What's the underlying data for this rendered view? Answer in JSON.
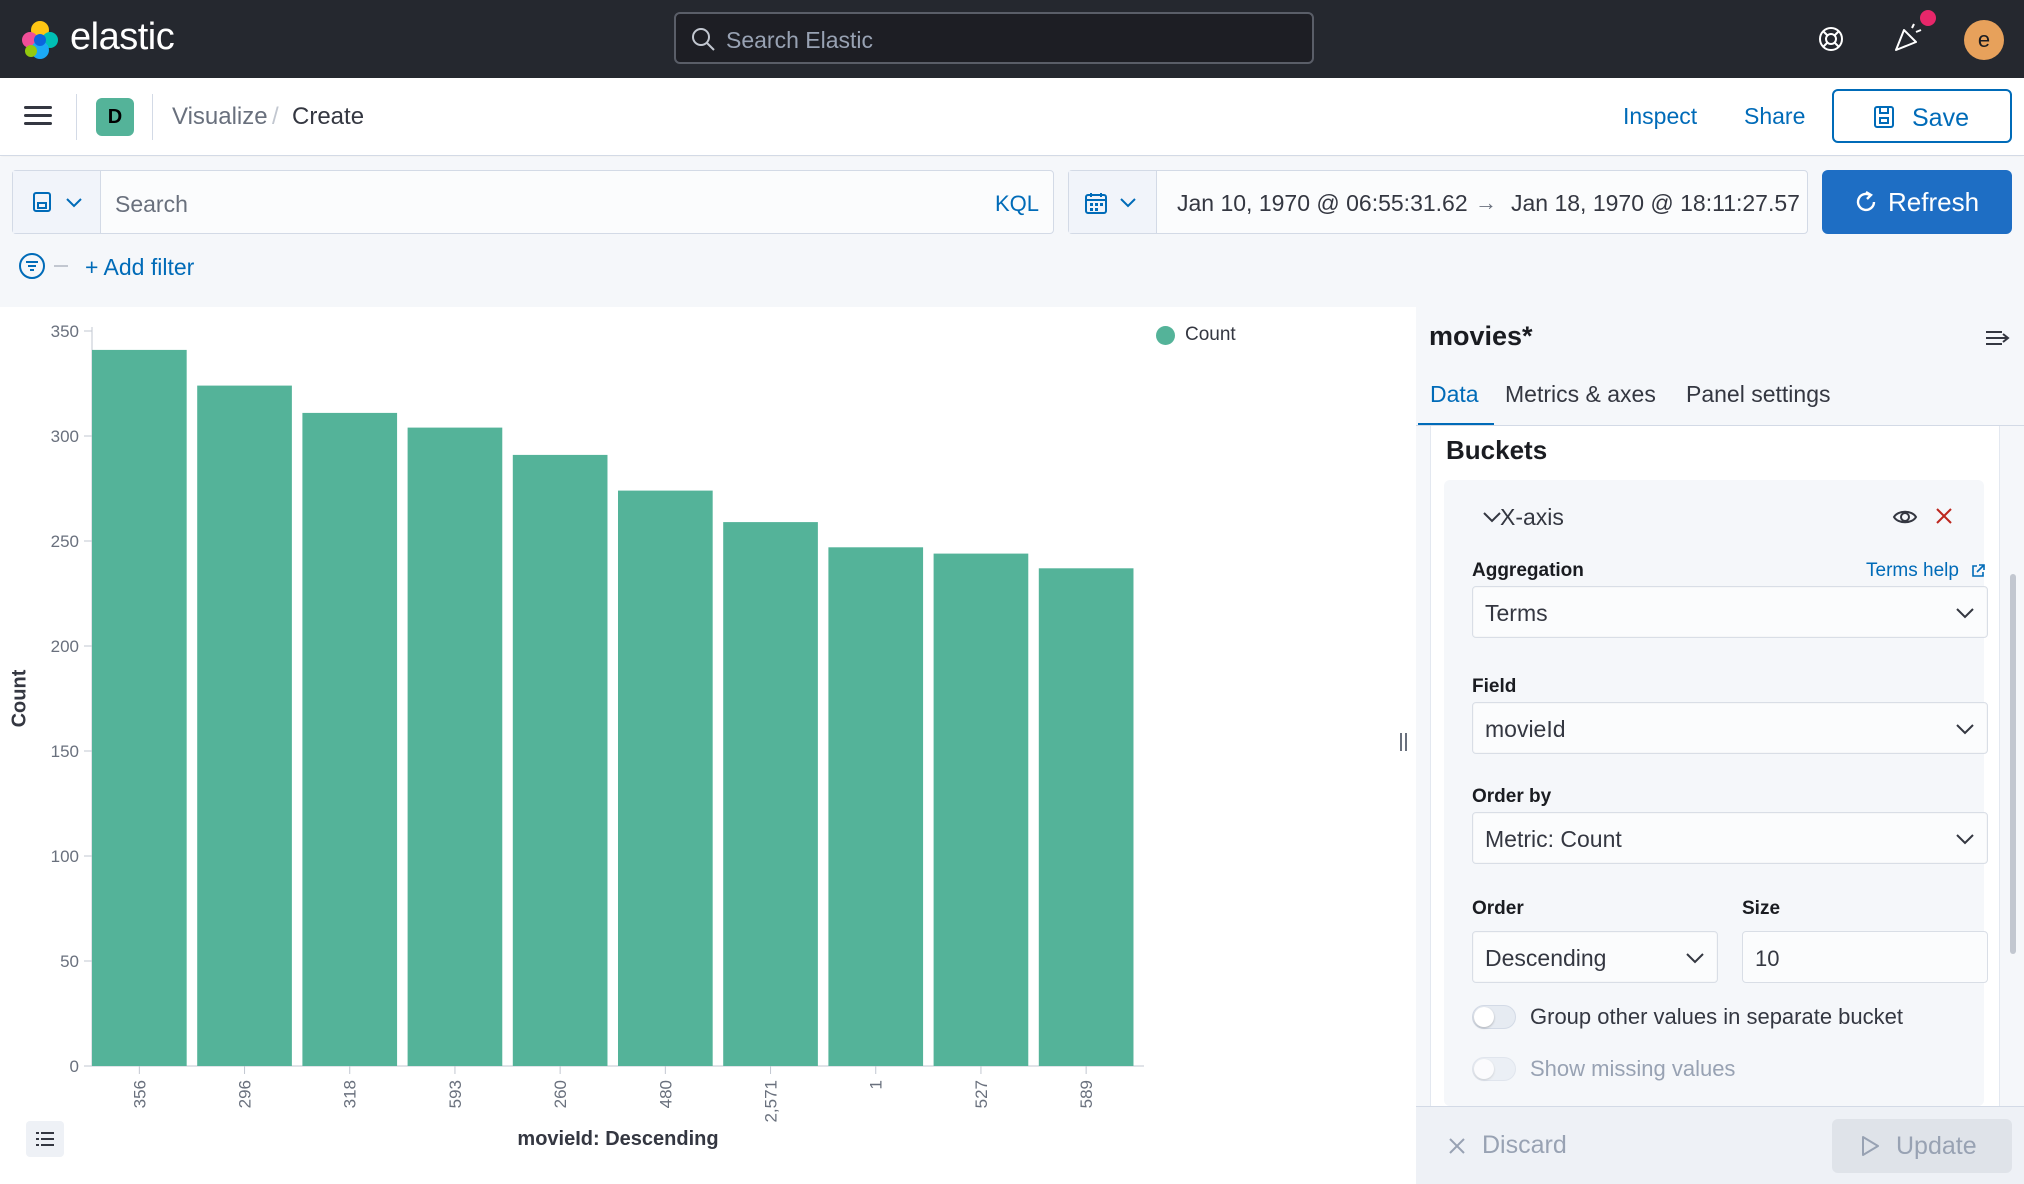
{
  "header": {
    "logo_text": "elastic",
    "search_placeholder": "Search Elastic",
    "user_initial": "e"
  },
  "appbar": {
    "space_initial": "D",
    "breadcrumbs": [
      "Visualize",
      "Create"
    ],
    "separator": "/",
    "inspect_label": "Inspect",
    "share_label": "Share",
    "save_label": "Save"
  },
  "query": {
    "placeholder": "Search",
    "language": "KQL",
    "date_start": "Jan 10, 1970 @ 06:55:31.62",
    "date_arrow": "→",
    "date_end": "Jan 18, 1970 @ 18:11:27.57",
    "refresh_label": "Refresh",
    "add_filter_label": "+ Add filter"
  },
  "chart_data": {
    "type": "bar",
    "categories": [
      "356",
      "296",
      "318",
      "593",
      "260",
      "480",
      "2,571",
      "1",
      "527",
      "589"
    ],
    "series": [
      {
        "name": "Count",
        "values": [
          341,
          324,
          311,
          304,
          291,
          274,
          259,
          247,
          244,
          237
        ]
      }
    ],
    "xlabel": "movieId: Descending",
    "ylabel": "Count",
    "ylim": [
      0,
      350
    ],
    "yticks": [
      0,
      50,
      100,
      150,
      200,
      250,
      300,
      350
    ],
    "legend_position": "top-right",
    "bar_color": "#54b399"
  },
  "panel": {
    "index_pattern": "movies*",
    "tabs": [
      "Data",
      "Metrics & axes",
      "Panel settings"
    ],
    "section_title": "Buckets",
    "bucket_title": "X-axis",
    "aggregation_label": "Aggregation",
    "terms_help": "Terms help",
    "aggregation_value": "Terms",
    "field_label": "Field",
    "field_value": "movieId",
    "order_by_label": "Order by",
    "order_by_value": "Metric: Count",
    "order_label": "Order",
    "order_value": "Descending",
    "size_label": "Size",
    "size_value": "10",
    "group_other_label": "Group other values in separate bucket",
    "show_missing_label": "Show missing values",
    "discard_label": "Discard",
    "update_label": "Update"
  },
  "colors": {
    "header_bg": "#25282f",
    "accent": "#006bb8",
    "primary_button": "#1e6ec4",
    "bar": "#54b399",
    "notification_dot": "#e7276a",
    "avatar": "#e7a15b"
  }
}
